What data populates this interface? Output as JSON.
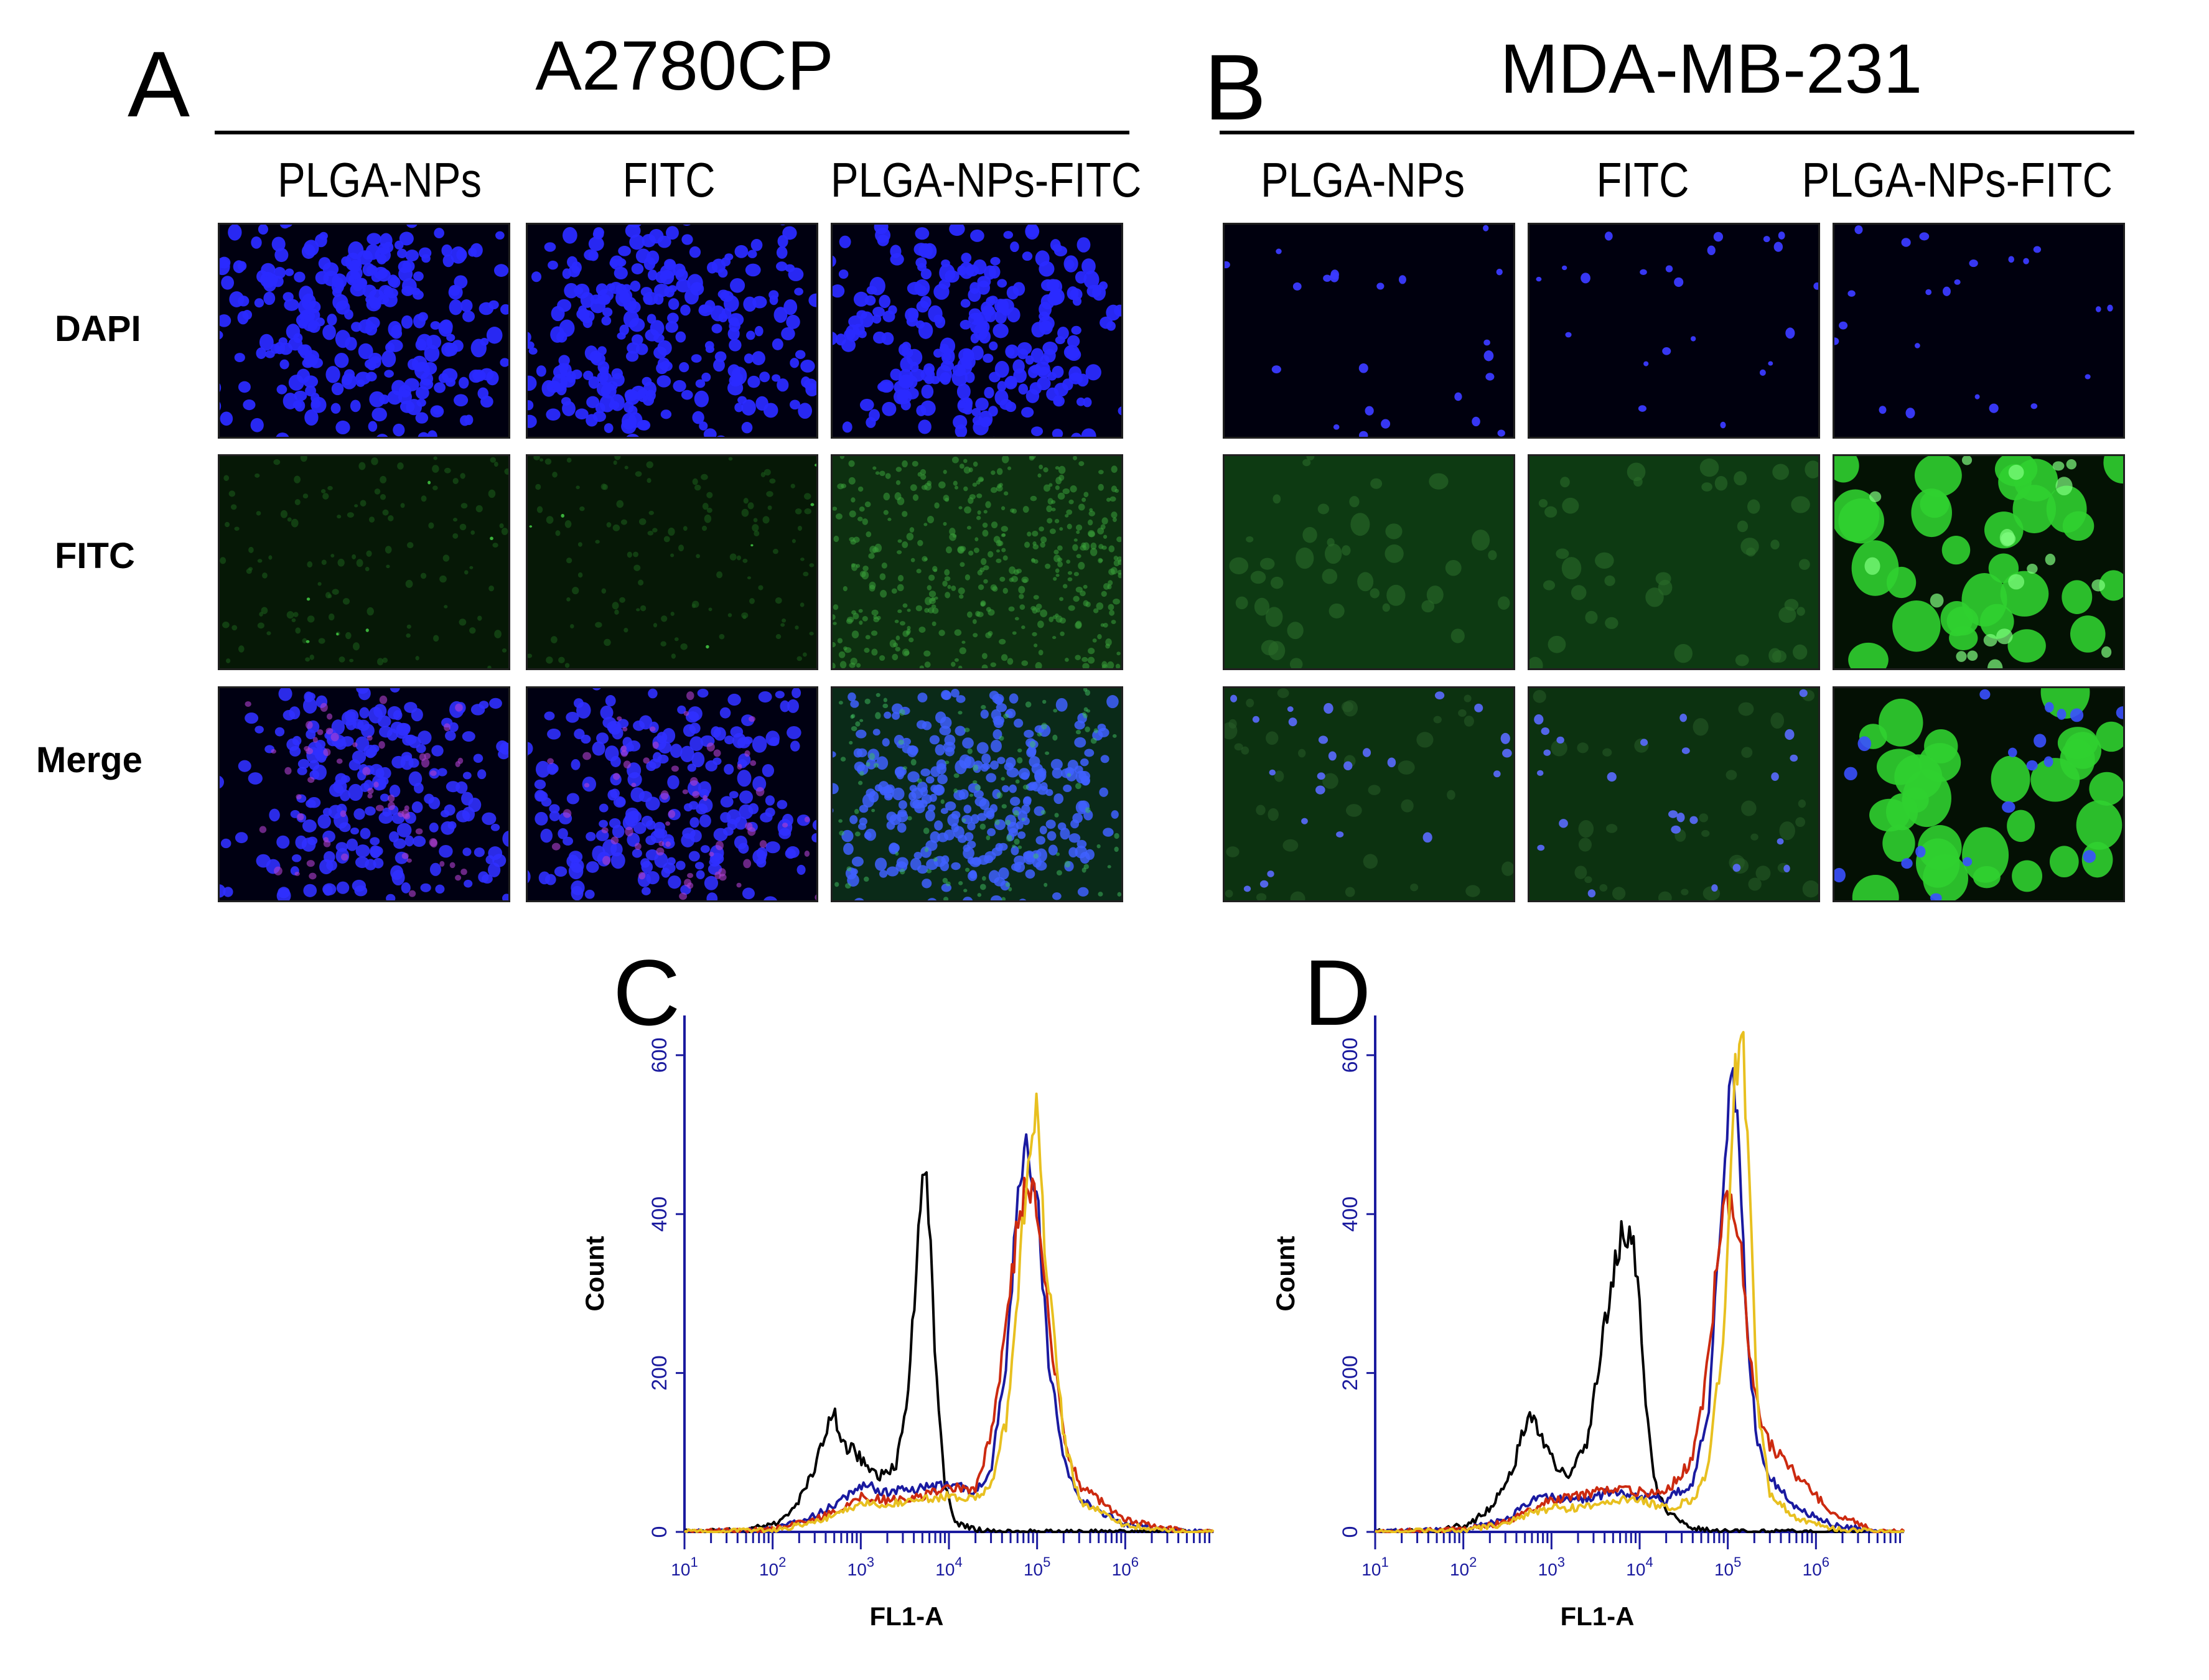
{
  "panels": {
    "A": {
      "letter": "A",
      "title": "A2780CP"
    },
    "B": {
      "letter": "B",
      "title": "MDA-MB-231"
    },
    "C": {
      "letter": "C"
    },
    "D": {
      "letter": "D"
    }
  },
  "column_labels": [
    "PLGA-NPs",
    "FITC",
    "PLGA-NPs-FITC"
  ],
  "row_labels": [
    "DAPI",
    "FITC",
    "Merge"
  ],
  "chart_data": [
    {
      "panel": "C",
      "type": "line",
      "ylabel": "Count",
      "xlabel": "FL1-A",
      "xscale": "log",
      "xlim": [
        10,
        10000000
      ],
      "ylim": [
        0,
        650
      ],
      "yticks": [
        0,
        200,
        400,
        600
      ],
      "xtick_labels": [
        "10^1",
        "10^2",
        "10^3",
        "10^4",
        "10^5",
        "10^6"
      ],
      "series": [
        {
          "color": "#000000",
          "x": [
            10,
            50,
            120,
            200,
            300,
            400,
            500,
            600,
            700,
            800,
            1000,
            1500,
            2500,
            3500,
            5000,
            6000,
            7000,
            9000,
            12000,
            20000,
            50000,
            100000,
            500000,
            5000000
          ],
          "y": [
            0,
            2,
            12,
            40,
            80,
            125,
            150,
            120,
            100,
            110,
            90,
            70,
            80,
            180,
            470,
            400,
            220,
            60,
            12,
            3,
            0,
            0,
            0,
            0
          ]
        },
        {
          "color": "#1a1aa0",
          "x": [
            10,
            100,
            300,
            600,
            1000,
            2000,
            5000,
            10000,
            20000,
            30000,
            45000,
            60000,
            80000,
            100000,
            130000,
            200000,
            300000,
            1000000,
            5000000
          ],
          "y": [
            0,
            3,
            20,
            40,
            60,
            50,
            55,
            60,
            50,
            80,
            210,
            430,
            490,
            420,
            230,
            90,
            40,
            10,
            0
          ]
        },
        {
          "color": "#cc2a10",
          "x": [
            10,
            100,
            300,
            600,
            1000,
            2000,
            5000,
            10000,
            20000,
            30000,
            45000,
            60000,
            80000,
            100000,
            130000,
            200000,
            300000,
            1000000,
            5000000
          ],
          "y": [
            0,
            3,
            15,
            30,
            45,
            40,
            45,
            55,
            55,
            120,
            260,
            390,
            440,
            420,
            280,
            120,
            60,
            15,
            0
          ]
        },
        {
          "color": "#e8c020",
          "x": [
            10,
            100,
            300,
            600,
            1000,
            2000,
            5000,
            10000,
            20000,
            30000,
            45000,
            60000,
            80000,
            100000,
            120000,
            200000,
            300000,
            1000000,
            5000000
          ],
          "y": [
            0,
            2,
            12,
            25,
            35,
            35,
            40,
            45,
            40,
            60,
            140,
            300,
            480,
            550,
            380,
            120,
            40,
            8,
            0
          ]
        }
      ]
    },
    {
      "panel": "D",
      "type": "line",
      "ylabel": "Count",
      "xlabel": "FL1-A",
      "xscale": "log",
      "xlim": [
        10,
        10000000
      ],
      "ylim": [
        0,
        650
      ],
      "yticks": [
        0,
        200,
        400,
        600
      ],
      "xtick_labels": [
        "10^1",
        "10^2",
        "10^3",
        "10^4",
        "10^5",
        "10^6"
      ],
      "series": [
        {
          "color": "#000000",
          "x": [
            10,
            50,
            120,
            200,
            300,
            400,
            500,
            600,
            700,
            900,
            1100,
            1500,
            2500,
            4000,
            6000,
            8000,
            10000,
            12000,
            15000,
            20000,
            40000,
            100000,
            500000,
            5000000
          ],
          "y": [
            0,
            2,
            10,
            30,
            60,
            95,
            135,
            150,
            130,
            100,
            85,
            70,
            110,
            260,
            370,
            380,
            280,
            150,
            60,
            25,
            5,
            0,
            0,
            0
          ]
        },
        {
          "color": "#1a1aa0",
          "x": [
            10,
            100,
            300,
            600,
            1000,
            2000,
            5000,
            10000,
            20000,
            40000,
            60000,
            80000,
            110000,
            140000,
            170000,
            220000,
            300000,
            600000,
            1500000,
            5000000
          ],
          "y": [
            0,
            3,
            15,
            40,
            45,
            40,
            50,
            45,
            40,
            60,
            150,
            380,
            580,
            450,
            220,
            110,
            70,
            30,
            10,
            0
          ]
        },
        {
          "color": "#cc2a10",
          "x": [
            10,
            100,
            300,
            600,
            1000,
            2000,
            5000,
            10000,
            20000,
            40000,
            60000,
            80000,
            110000,
            140000,
            170000,
            220000,
            300000,
            600000,
            1500000,
            5000000
          ],
          "y": [
            0,
            3,
            12,
            30,
            40,
            45,
            55,
            50,
            50,
            90,
            210,
            380,
            430,
            380,
            240,
            150,
            110,
            70,
            25,
            0
          ]
        },
        {
          "color": "#e8c020",
          "x": [
            10,
            100,
            300,
            600,
            1000,
            2000,
            5000,
            10000,
            20000,
            40000,
            60000,
            90000,
            120000,
            150000,
            180000,
            220000,
            300000,
            600000,
            1500000,
            5000000
          ],
          "y": [
            0,
            2,
            10,
            25,
            30,
            30,
            40,
            40,
            30,
            40,
            80,
            250,
            590,
            620,
            400,
            150,
            50,
            15,
            5,
            0
          ]
        }
      ]
    }
  ],
  "microscopy_images": {
    "A": [
      [
        "dapi-dense-cluster",
        "dapi-dense-cluster",
        "dapi-dense-cluster"
      ],
      [
        "fitc-faint",
        "fitc-faint",
        "fitc-punctate"
      ],
      [
        "merge-blue-magenta",
        "merge-blue-magenta",
        "merge-blue-green"
      ]
    ],
    "B": [
      [
        "dapi-sparse",
        "dapi-sparse",
        "dapi-sparse"
      ],
      [
        "fitc-moderate",
        "fitc-moderate",
        "fitc-bright-cells"
      ],
      [
        "merge-green-blue",
        "merge-green-blue",
        "merge-bright-green"
      ]
    ]
  },
  "colors": {
    "dapi_blue": "#3030ff",
    "fitc_green": "#40e040",
    "axis_blue": "#1a1a9e"
  }
}
